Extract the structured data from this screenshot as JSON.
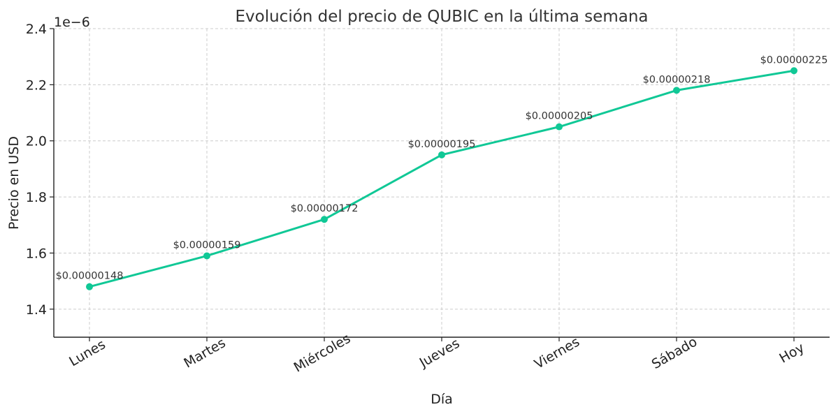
{
  "chart_data": {
    "type": "line",
    "title": "Evolución del precio de QUBIC en la última semana",
    "xlabel": "Día",
    "ylabel": "Precio en USD",
    "y_offset_label": "1e−6",
    "categories": [
      "Lunes",
      "Martes",
      "Miércoles",
      "Jueves",
      "Viernes",
      "Sábado",
      "Hoy"
    ],
    "series": [
      {
        "values": [
          1.48e-06,
          1.59e-06,
          1.72e-06,
          1.95e-06,
          2.05e-06,
          2.18e-06,
          2.25e-06
        ],
        "labels": [
          "$0.00000148",
          "$0.00000159",
          "$0.00000172",
          "$0.00000195",
          "$0.00000205",
          "$0.00000218",
          "$0.00000225"
        ]
      }
    ],
    "ylim": [
      1.3e-06,
      2.4e-06
    ],
    "yticks": [
      1.4e-06,
      1.6e-06,
      1.8e-06,
      2e-06,
      2.2e-06,
      2.4e-06
    ],
    "ytick_labels": [
      "1.4",
      "1.6",
      "1.8",
      "2.0",
      "2.2",
      "2.4"
    ],
    "grid": true,
    "x_tick_rotation_deg": 30,
    "colors": {
      "series": "#10c896",
      "grid": "#cccccc",
      "axis": "#222222"
    }
  }
}
